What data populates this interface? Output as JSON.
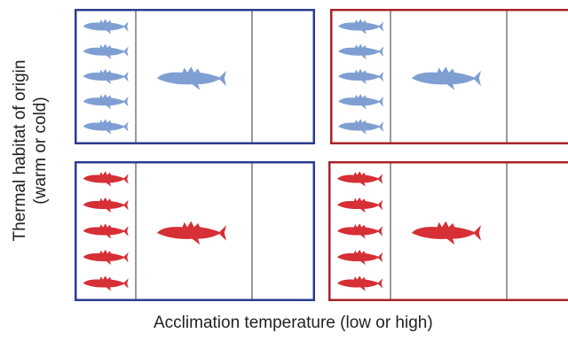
{
  "labels": {
    "y_line1": "Thermal habitat  of origin",
    "y_line2": "(warm or cold)",
    "x": "Acclimation temperature (low or high)"
  },
  "colors": {
    "blue_frame": "#2b3d8f",
    "red_frame": "#a8242a",
    "divider": "#9a9a9a",
    "blue_fish": "#7f9fd3",
    "red_fish": "#d62f35"
  },
  "panels": [
    {
      "id": "top-left",
      "frame": "blue",
      "fish": "blue",
      "small_fish_count": 5,
      "large_fish_count": 1
    },
    {
      "id": "top-right",
      "frame": "red",
      "fish": "blue",
      "small_fish_count": 5,
      "large_fish_count": 1
    },
    {
      "id": "bottom-left",
      "frame": "blue",
      "fish": "red",
      "small_fish_count": 5,
      "large_fish_count": 1
    },
    {
      "id": "bottom-right",
      "frame": "red",
      "fish": "red",
      "small_fish_count": 5,
      "large_fish_count": 1
    }
  ]
}
